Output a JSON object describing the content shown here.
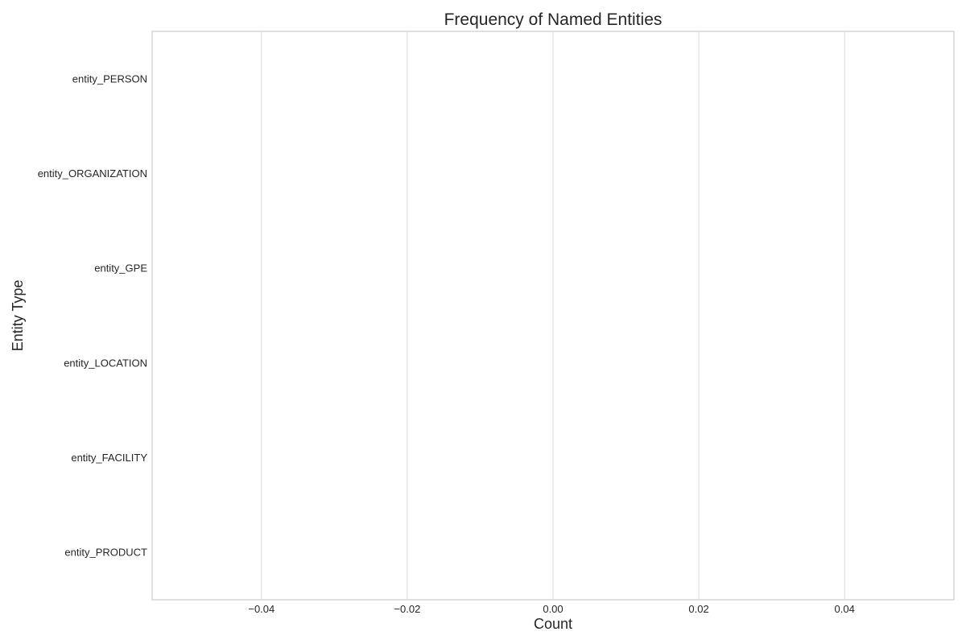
{
  "chart_data": {
    "type": "bar",
    "orientation": "horizontal",
    "title": "Frequency of Named Entities",
    "xlabel": "Count",
    "ylabel": "Entity Type",
    "categories": [
      "entity_PERSON",
      "entity_ORGANIZATION",
      "entity_GPE",
      "entity_LOCATION",
      "entity_FACILITY",
      "entity_PRODUCT"
    ],
    "values": [
      0,
      0,
      0,
      0,
      0,
      0
    ],
    "xlim": [
      -0.055,
      0.055
    ],
    "xticks": [
      -0.04,
      -0.02,
      0.0,
      0.02,
      0.04
    ],
    "xtick_labels": [
      "−0.04",
      "−0.02",
      "0.00",
      "0.02",
      "0.04"
    ],
    "grid": true
  }
}
